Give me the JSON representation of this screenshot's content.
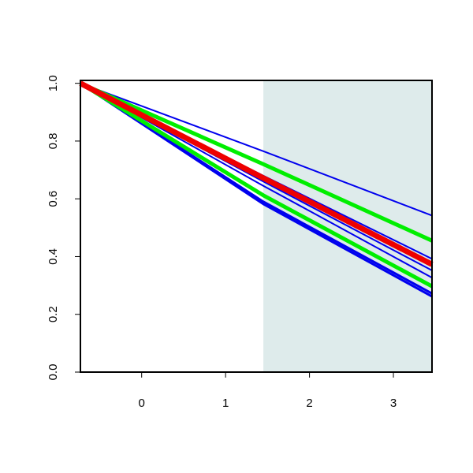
{
  "chart_data": {
    "type": "line",
    "x": [
      -0.73,
      1.45,
      3.46
    ],
    "xlim": [
      -0.73,
      3.46
    ],
    "ylim": [
      0,
      1.01
    ],
    "xticks": [
      0,
      1,
      2,
      3
    ],
    "yticks": [
      {
        "value": 0,
        "label": "0.0"
      },
      {
        "value": 0.2,
        "label": "0.2"
      },
      {
        "value": 0.4,
        "label": "0.4"
      },
      {
        "value": 0.6,
        "label": "0.6"
      },
      {
        "value": 0.8,
        "label": "0.8"
      },
      {
        "value": 1,
        "label": "1.0"
      }
    ],
    "shaded_region": {
      "x": [
        1.45,
        3.46
      ],
      "color": "#deebeb"
    },
    "series": [
      {
        "color": "#0000ee",
        "width": 2,
        "values": [
          1,
          0.765,
          0.542
        ]
      },
      {
        "color": "#0000ee",
        "width": 2,
        "values": [
          1,
          0.68,
          0.392
        ]
      },
      {
        "color": "#0000ee",
        "width": 2,
        "values": [
          1,
          0.66,
          0.352
        ]
      },
      {
        "color": "#0000ee",
        "width": 2,
        "values": [
          1,
          0.645,
          0.327
        ]
      },
      {
        "color": "#0000ee",
        "width": 3,
        "values": [
          1,
          0.59,
          0.272
        ]
      },
      {
        "color": "#0000ee",
        "width": 3,
        "values": [
          1,
          0.582,
          0.262
        ]
      },
      {
        "color": "#00ee00",
        "width": 5,
        "values": [
          1,
          0.72,
          0.455
        ]
      },
      {
        "color": "#00ee00",
        "width": 5,
        "values": [
          1,
          0.612,
          0.297
        ]
      },
      {
        "color": "#ee0000",
        "width": 7,
        "values": [
          1,
          0.672,
          0.373
        ]
      }
    ]
  }
}
